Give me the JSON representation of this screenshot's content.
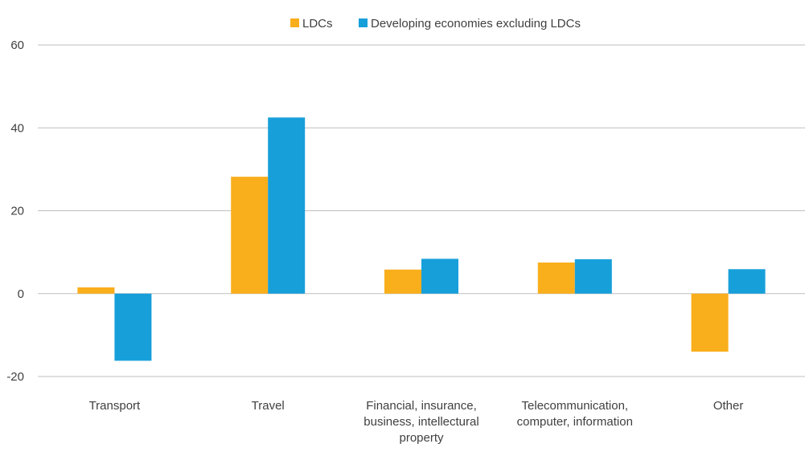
{
  "chart_data": {
    "type": "bar",
    "title": "",
    "xlabel": "",
    "ylabel": "",
    "ylim": [
      -20,
      60
    ],
    "yticks": [
      -20,
      0,
      20,
      40,
      60
    ],
    "grid": true,
    "legend_position": "top-center",
    "categories": [
      [
        "Transport"
      ],
      [
        "Travel"
      ],
      [
        "Financial, insurance,",
        "business, intellectural",
        "property"
      ],
      [
        "Telecommunication,",
        "computer, information"
      ],
      [
        "Other"
      ]
    ],
    "series": [
      {
        "name": "LDCs",
        "color": "#F9AE1C",
        "values": [
          1.5,
          28.2,
          5.8,
          7.5,
          -14.0
        ]
      },
      {
        "name": "Developing economies excluding LDCs",
        "color": "#179FDA",
        "values": [
          -16.2,
          42.5,
          8.4,
          8.3,
          5.9
        ]
      }
    ]
  }
}
